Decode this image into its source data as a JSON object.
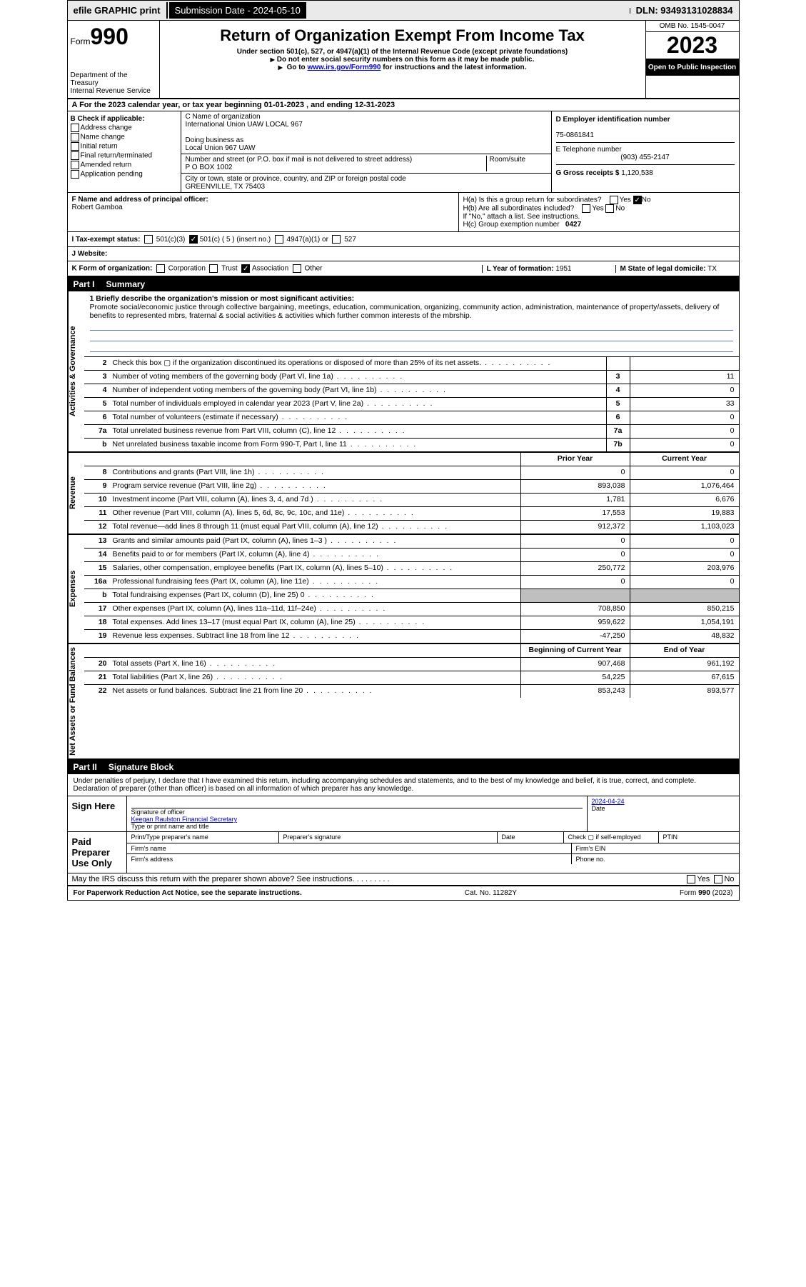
{
  "topbar": {
    "efile_label": "efile GRAPHIC print",
    "submission_label": "Submission Date - 2024-05-10",
    "dln_label": "DLN: 93493131028834"
  },
  "header": {
    "form_word": "Form",
    "form_num": "990",
    "dept": "Department of the Treasury",
    "irs": "Internal Revenue Service",
    "title": "Return of Organization Exempt From Income Tax",
    "sub1": "Under section 501(c), 527, or 4947(a)(1) of the Internal Revenue Code (except private foundations)",
    "sub2": "Do not enter social security numbers on this form as it may be made public.",
    "sub3_pre": "Go to ",
    "sub3_link": "www.irs.gov/Form990",
    "sub3_post": " for instructions and the latest information.",
    "omb": "OMB No. 1545-0047",
    "year": "2023",
    "open": "Open to Public Inspection"
  },
  "row_a": "A For the 2023 calendar year, or tax year beginning 01-01-2023   , and ending 12-31-2023",
  "col_b": {
    "label": "B Check if applicable:",
    "items": [
      "Address change",
      "Name change",
      "Initial return",
      "Final return/terminated",
      "Amended return",
      "Application pending"
    ]
  },
  "col_c": {
    "name_lbl": "C Name of organization",
    "name": "International Union UAW LOCAL 967",
    "dba_lbl": "Doing business as",
    "dba": "Local Union 967 UAW",
    "street_lbl": "Number and street (or P.O. box if mail is not delivered to street address)",
    "street": "P O BOX 1002",
    "room_lbl": "Room/suite",
    "city_lbl": "City or town, state or province, country, and ZIP or foreign postal code",
    "city": "GREENVILLE, TX  75403"
  },
  "col_d": {
    "ein_lbl": "D Employer identification number",
    "ein": "75-0861841",
    "tel_lbl": "E Telephone number",
    "tel": "(903) 455-2147",
    "gross_lbl": "G Gross receipts $",
    "gross": "1,120,538"
  },
  "f": {
    "lbl": "F Name and address of principal officer:",
    "name": "Robert Gamboa"
  },
  "h": {
    "a": "H(a)  Is this a group return for subordinates?",
    "b": "H(b)  Are all subordinates included?",
    "b2": "If \"No,\" attach a list. See instructions.",
    "c": "H(c)  Group exemption number",
    "c_val": "0427",
    "yes": "Yes",
    "no": "No"
  },
  "i": {
    "lbl": "I   Tax-exempt status:",
    "opts": [
      "501(c)(3)",
      "501(c) ( 5 ) (insert no.)",
      "4947(a)(1) or",
      "527"
    ]
  },
  "j": "J   Website:",
  "k": {
    "lbl": "K Form of organization:",
    "opts": [
      "Corporation",
      "Trust",
      "Association",
      "Other"
    ]
  },
  "l": {
    "lbl": "L Year of formation:",
    "val": "1951"
  },
  "m": {
    "lbl": "M State of legal domicile:",
    "val": "TX"
  },
  "part1": {
    "label": "Part I",
    "title": "Summary"
  },
  "mission": {
    "line1_lbl": "1  Briefly describe the organization's mission or most significant activities:",
    "text": "Promote social/economic justice through collective bargaining, meetings, education, communication, organizing, community action, administration, maintenance of property/assets, delivery of benefits to represented mbrs, fraternal & social activities & activities which further common interests of the mbrship."
  },
  "gov_label": "Activities & Governance",
  "rev_label": "Revenue",
  "exp_label": "Expenses",
  "net_label": "Net Assets or Fund Balances",
  "lines_gov": [
    {
      "n": "2",
      "d": "Check this box ▢ if the organization discontinued its operations or disposed of more than 25% of its net assets.",
      "box": "",
      "v": ""
    },
    {
      "n": "3",
      "d": "Number of voting members of the governing body (Part VI, line 1a)",
      "box": "3",
      "v": "11"
    },
    {
      "n": "4",
      "d": "Number of independent voting members of the governing body (Part VI, line 1b)",
      "box": "4",
      "v": "0"
    },
    {
      "n": "5",
      "d": "Total number of individuals employed in calendar year 2023 (Part V, line 2a)",
      "box": "5",
      "v": "33"
    },
    {
      "n": "6",
      "d": "Total number of volunteers (estimate if necessary)",
      "box": "6",
      "v": "0"
    },
    {
      "n": "7a",
      "d": "Total unrelated business revenue from Part VIII, column (C), line 12",
      "box": "7a",
      "v": "0"
    },
    {
      "n": "b",
      "d": "Net unrelated business taxable income from Form 990-T, Part I, line 11",
      "box": "7b",
      "v": "0"
    }
  ],
  "col_hdr": {
    "prior": "Prior Year",
    "curr": "Current Year",
    "beg": "Beginning of Current Year",
    "end": "End of Year"
  },
  "lines_rev": [
    {
      "n": "8",
      "d": "Contributions and grants (Part VIII, line 1h)",
      "p": "0",
      "c": "0"
    },
    {
      "n": "9",
      "d": "Program service revenue (Part VIII, line 2g)",
      "p": "893,038",
      "c": "1,076,464"
    },
    {
      "n": "10",
      "d": "Investment income (Part VIII, column (A), lines 3, 4, and 7d )",
      "p": "1,781",
      "c": "6,676"
    },
    {
      "n": "11",
      "d": "Other revenue (Part VIII, column (A), lines 5, 6d, 8c, 9c, 10c, and 11e)",
      "p": "17,553",
      "c": "19,883"
    },
    {
      "n": "12",
      "d": "Total revenue—add lines 8 through 11 (must equal Part VIII, column (A), line 12)",
      "p": "912,372",
      "c": "1,103,023"
    }
  ],
  "lines_exp": [
    {
      "n": "13",
      "d": "Grants and similar amounts paid (Part IX, column (A), lines 1–3 )",
      "p": "0",
      "c": "0"
    },
    {
      "n": "14",
      "d": "Benefits paid to or for members (Part IX, column (A), line 4)",
      "p": "0",
      "c": "0"
    },
    {
      "n": "15",
      "d": "Salaries, other compensation, employee benefits (Part IX, column (A), lines 5–10)",
      "p": "250,772",
      "c": "203,976"
    },
    {
      "n": "16a",
      "d": "Professional fundraising fees (Part IX, column (A), line 11e)",
      "p": "0",
      "c": "0"
    },
    {
      "n": "b",
      "d": "Total fundraising expenses (Part IX, column (D), line 25) 0",
      "p": "",
      "c": "",
      "grey": true
    },
    {
      "n": "17",
      "d": "Other expenses (Part IX, column (A), lines 11a–11d, 11f–24e)",
      "p": "708,850",
      "c": "850,215"
    },
    {
      "n": "18",
      "d": "Total expenses. Add lines 13–17 (must equal Part IX, column (A), line 25)",
      "p": "959,622",
      "c": "1,054,191"
    },
    {
      "n": "19",
      "d": "Revenue less expenses. Subtract line 18 from line 12",
      "p": "-47,250",
      "c": "48,832"
    }
  ],
  "lines_net": [
    {
      "n": "20",
      "d": "Total assets (Part X, line 16)",
      "p": "907,468",
      "c": "961,192"
    },
    {
      "n": "21",
      "d": "Total liabilities (Part X, line 26)",
      "p": "54,225",
      "c": "67,615"
    },
    {
      "n": "22",
      "d": "Net assets or fund balances. Subtract line 21 from line 20",
      "p": "853,243",
      "c": "893,577"
    }
  ],
  "part2": {
    "label": "Part II",
    "title": "Signature Block"
  },
  "sig": {
    "perjury": "Under penalties of perjury, I declare that I have examined this return, including accompanying schedules and statements, and to the best of my knowledge and belief, it is true, correct, and complete. Declaration of preparer (other than officer) is based on all information of which preparer has any knowledge.",
    "sign_here": "Sign Here",
    "sig_officer": "Signature of officer",
    "officer_name": "Keegan Raulston  Financial Secretary",
    "type_name": "Type or print name and title",
    "date_lbl": "Date",
    "date_val": "2024-04-24",
    "paid": "Paid Preparer Use Only",
    "pt_name": "Print/Type preparer's name",
    "pt_sig": "Preparer's signature",
    "pt_date": "Date",
    "pt_check": "Check ▢ if self-employed",
    "ptin": "PTIN",
    "firm_name": "Firm's name",
    "firm_ein": "Firm's EIN",
    "firm_addr": "Firm's address",
    "phone": "Phone no.",
    "discuss": "May the IRS discuss this return with the preparer shown above? See instructions.",
    "paperwork": "For Paperwork Reduction Act Notice, see the separate instructions.",
    "cat": "Cat. No. 11282Y",
    "formref": "Form 990 (2023)"
  }
}
